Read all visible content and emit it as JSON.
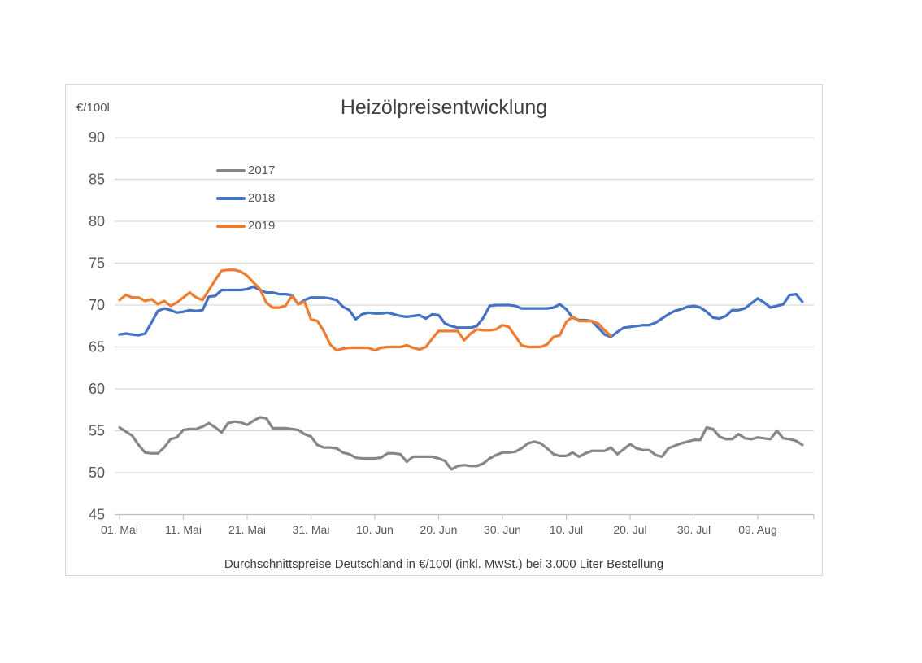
{
  "chart_data": {
    "type": "line",
    "title": "Heizölpreisentwicklung",
    "unit_label": "€/100l",
    "subtitle": "Durchschnittspreise Deutschland in €/100l (inkl. MwSt.) bei 3.000 Liter Bestellung",
    "ylim": [
      45,
      90
    ],
    "y_ticks": [
      90,
      85,
      80,
      75,
      70,
      65,
      60,
      55,
      50,
      45
    ],
    "x_tick_labels": [
      "01. Mai",
      "11. Mai",
      "21. Mai",
      "31. Mai",
      "10. Jun",
      "20. Jun",
      "30. Jun",
      "10. Jul",
      "20. Jul",
      "30. Jul",
      "09. Aug"
    ],
    "x_note": "one value per day starting 01. Mai; series 2017 and 2018 run to mid-August, series 2019 ends 17. Jul",
    "grid": true,
    "legend_position": "inside-top-left",
    "colors": {
      "grid": "#D9D9D9",
      "axis": "#BFBFBF",
      "tick_text": "#595959",
      "title_text": "#404040"
    },
    "series": [
      {
        "name": "2017",
        "color": "#878787",
        "values": [
          55.4,
          54.9,
          54.4,
          53.3,
          52.4,
          52.3,
          52.3,
          53.0,
          54.0,
          54.2,
          55.1,
          55.2,
          55.2,
          55.5,
          55.9,
          55.4,
          54.8,
          55.9,
          56.1,
          56.0,
          55.7,
          56.2,
          56.6,
          56.5,
          55.3,
          55.3,
          55.3,
          55.2,
          55.1,
          54.6,
          54.3,
          53.3,
          53.0,
          53.0,
          52.9,
          52.4,
          52.2,
          51.8,
          51.7,
          51.7,
          51.7,
          51.8,
          52.3,
          52.3,
          52.2,
          51.3,
          51.9,
          51.9,
          51.9,
          51.9,
          51.7,
          51.4,
          50.4,
          50.8,
          50.9,
          50.8,
          50.8,
          51.1,
          51.7,
          52.1,
          52.4,
          52.4,
          52.5,
          52.9,
          53.5,
          53.7,
          53.5,
          52.9,
          52.2,
          52.0,
          52.0,
          52.4,
          51.9,
          52.3,
          52.6,
          52.6,
          52.6,
          53.0,
          52.2,
          52.8,
          53.4,
          52.9,
          52.7,
          52.7,
          52.1,
          51.9,
          52.9,
          53.2,
          53.5,
          53.7,
          53.9,
          53.9,
          55.4,
          55.2,
          54.3,
          54.0,
          54.0,
          54.6,
          54.1,
          54.0,
          54.2,
          54.1,
          54.0,
          55.0,
          54.1,
          54.0,
          53.8,
          53.3
        ]
      },
      {
        "name": "2018",
        "color": "#4472C4",
        "values": [
          66.5,
          66.6,
          66.5,
          66.4,
          66.6,
          67.9,
          69.3,
          69.6,
          69.4,
          69.1,
          69.2,
          69.4,
          69.3,
          69.4,
          71.0,
          71.1,
          71.8,
          71.8,
          71.8,
          71.8,
          71.9,
          72.2,
          71.8,
          71.5,
          71.5,
          71.3,
          71.3,
          71.2,
          70.1,
          70.6,
          70.9,
          70.9,
          70.9,
          70.8,
          70.6,
          69.8,
          69.4,
          68.3,
          68.9,
          69.1,
          69.0,
          69.0,
          69.1,
          68.9,
          68.7,
          68.6,
          68.7,
          68.8,
          68.4,
          68.9,
          68.8,
          67.8,
          67.5,
          67.3,
          67.3,
          67.3,
          67.5,
          68.5,
          69.9,
          70.0,
          70.0,
          70.0,
          69.9,
          69.6,
          69.6,
          69.6,
          69.6,
          69.6,
          69.7,
          70.1,
          69.5,
          68.5,
          68.2,
          68.2,
          68.1,
          67.3,
          66.5,
          66.2,
          66.8,
          67.3,
          67.4,
          67.5,
          67.6,
          67.6,
          67.9,
          68.4,
          68.9,
          69.3,
          69.5,
          69.8,
          69.9,
          69.7,
          69.2,
          68.5,
          68.4,
          68.7,
          69.4,
          69.4,
          69.6,
          70.2,
          70.8,
          70.3,
          69.7,
          69.9,
          70.1,
          71.2,
          71.3,
          70.4
        ]
      },
      {
        "name": "2019",
        "color": "#ED7D31",
        "values": [
          70.6,
          71.2,
          70.9,
          70.9,
          70.5,
          70.7,
          70.1,
          70.5,
          69.9,
          70.3,
          70.9,
          71.5,
          70.9,
          70.6,
          71.8,
          73.0,
          74.1,
          74.2,
          74.2,
          74.0,
          73.5,
          72.7,
          71.9,
          70.3,
          69.7,
          69.7,
          69.9,
          71.1,
          70.1,
          70.4,
          68.3,
          68.1,
          66.9,
          65.3,
          64.6,
          64.8,
          64.9,
          64.9,
          64.9,
          64.9,
          64.6,
          64.9,
          65.0,
          65.0,
          65.0,
          65.2,
          64.9,
          64.7,
          65.0,
          66.0,
          66.9,
          66.9,
          66.9,
          66.9,
          65.8,
          66.6,
          67.1,
          67.0,
          67.0,
          67.1,
          67.6,
          67.4,
          66.3,
          65.2,
          65.0,
          65.0,
          65.0,
          65.3,
          66.2,
          66.4,
          68.0,
          68.6,
          68.1,
          68.1,
          68.1,
          67.8,
          67.0,
          66.3
        ]
      }
    ]
  }
}
